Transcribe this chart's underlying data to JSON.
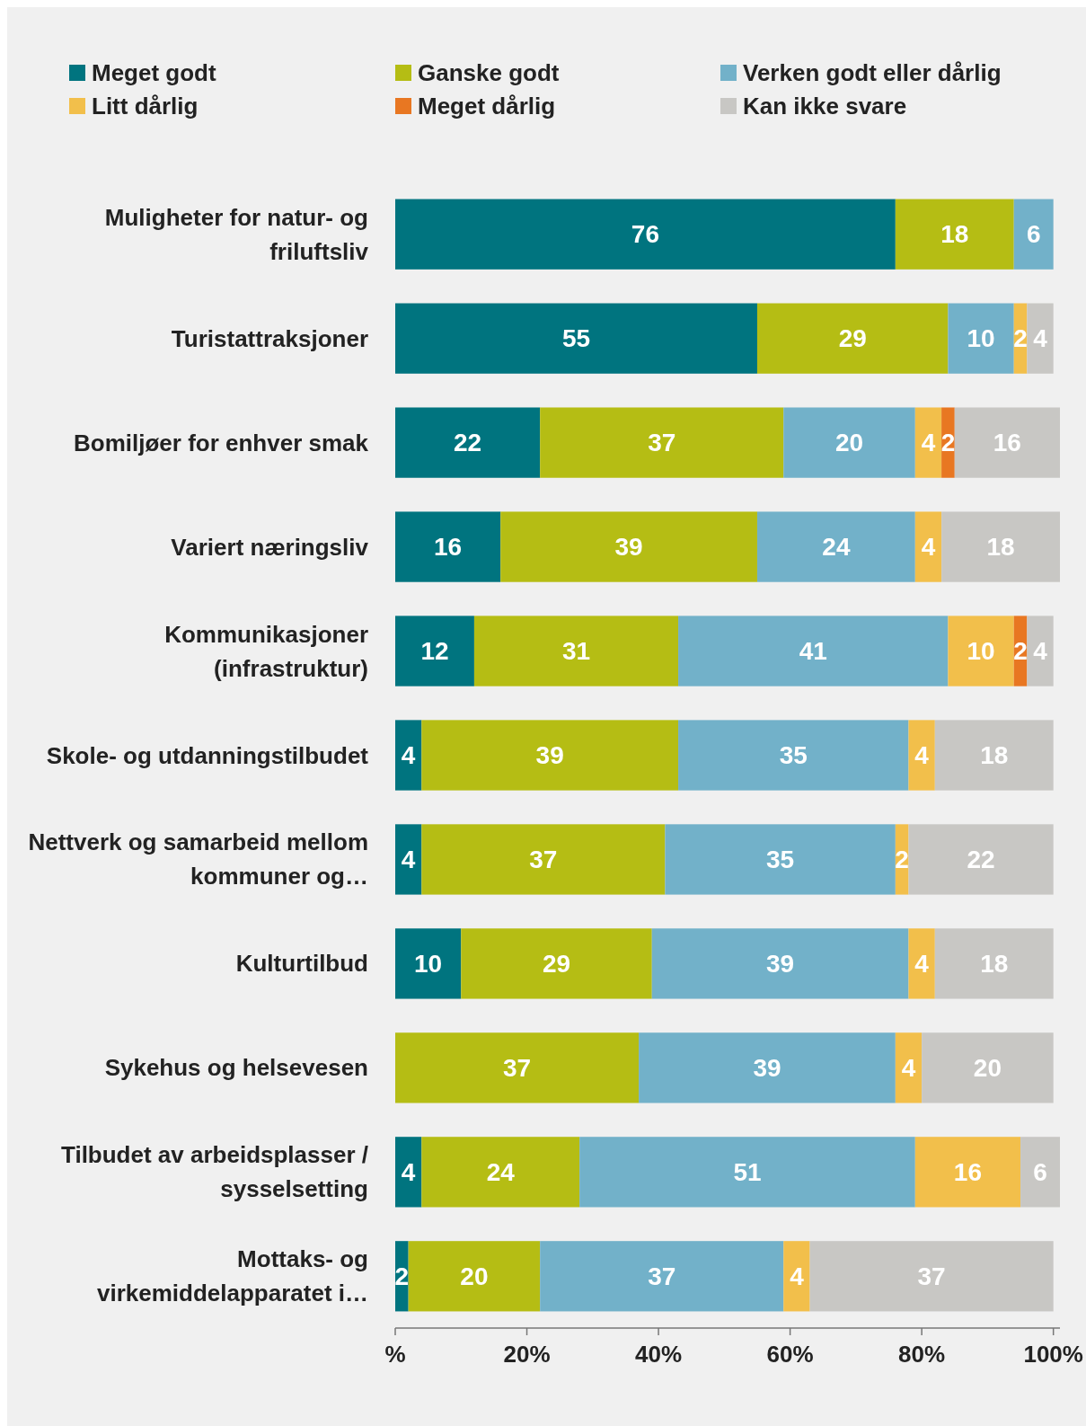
{
  "chart_data": {
    "type": "bar",
    "orientation": "horizontal",
    "stacked": true,
    "data_labels": true,
    "legend": "top",
    "categories": [
      "Muligheter for natur- og friluftsliv",
      "Turistattraksjoner",
      "Bomiljøer for enhver smak",
      "Variert næringsliv",
      "Kommunikasjoner (infrastruktur)",
      "Skole- og utdanningstilbudet",
      "Nettverk og samarbeid mellom kommuner og…",
      "Kulturtilbud",
      "Sykehus og helsevesen",
      "Tilbudet av arbeidsplasser / sysselsetting",
      "Mottaks- og virkemiddelapparatet i…"
    ],
    "series": [
      {
        "name": "Meget godt",
        "color": "#00747f",
        "values": [
          76,
          55,
          22,
          16,
          12,
          4,
          4,
          10,
          null,
          4,
          2
        ]
      },
      {
        "name": "Ganske godt",
        "color": "#b5bd14",
        "values": [
          18,
          29,
          37,
          39,
          31,
          39,
          37,
          29,
          37,
          24,
          20
        ]
      },
      {
        "name": "Verken godt eller dårlig",
        "color": "#72b1c9",
        "values": [
          6,
          10,
          20,
          24,
          41,
          35,
          35,
          39,
          39,
          51,
          37
        ]
      },
      {
        "name": "Litt dårlig",
        "color": "#f2bf4b",
        "values": [
          null,
          2,
          4,
          4,
          10,
          4,
          2,
          4,
          4,
          16,
          4
        ]
      },
      {
        "name": "Meget dårlig",
        "color": "#e87722",
        "values": [
          null,
          null,
          2,
          null,
          2,
          null,
          null,
          null,
          null,
          null,
          null
        ]
      },
      {
        "name": "Kan ikke svare",
        "color": "#c8c7c4",
        "values": [
          null,
          4,
          16,
          18,
          4,
          18,
          22,
          18,
          20,
          6,
          37
        ]
      }
    ],
    "xlim": [
      0,
      101
    ],
    "xticks": [
      {
        "value": 0,
        "label": "%"
      },
      {
        "value": 20,
        "label": "20%"
      },
      {
        "value": 40,
        "label": "40%"
      },
      {
        "value": 60,
        "label": "60%"
      },
      {
        "value": 80,
        "label": "80%"
      },
      {
        "value": 100,
        "label": "100%"
      }
    ]
  }
}
